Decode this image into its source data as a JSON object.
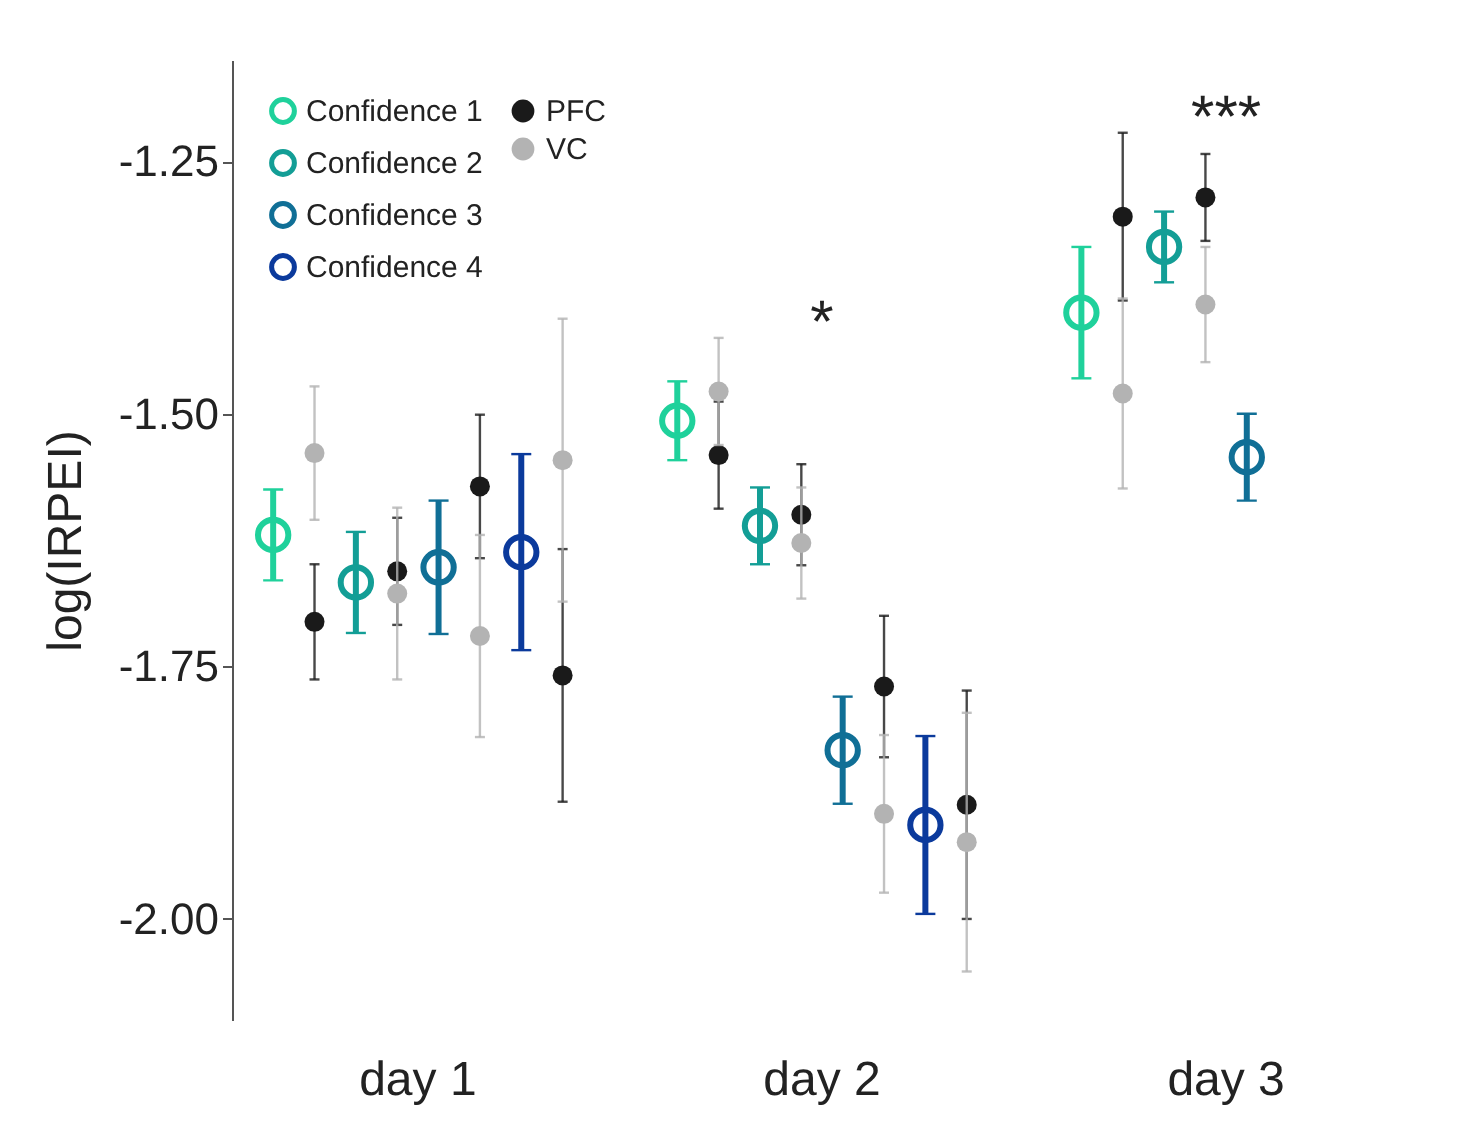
{
  "chart_data": {
    "type": "scatter",
    "ylabel": "log(IRPEI)",
    "categories": [
      "day 1",
      "day 2",
      "day 3"
    ],
    "ylim": [
      -2.1,
      -1.15
    ],
    "yticks": [
      {
        "value": -2,
        "label": "-2.00"
      },
      -1.75,
      {
        "value": -1.5,
        "label": "-1.50"
      },
      -1.25
    ],
    "grid": false,
    "legend": "top left",
    "marker": "circle",
    "annotations": [
      "*",
      "***"
    ],
    "series": [
      {
        "name": "Confidence 1",
        "color": "#1fd19b",
        "x": [
          "day 1",
          "day 2",
          "day 3"
        ],
        "values": [
          -1.62,
          -1.507,
          -1.4
        ],
        "errors": [
          0.045,
          0.039,
          0.065
        ]
      },
      {
        "name": "Confidence 2",
        "color": "#139e96",
        "x": [
          "day 1",
          "day 2",
          "day 3"
        ],
        "values": [
          -1.667,
          -1.611,
          -1.335
        ],
        "errors": [
          0.05,
          0.038,
          0.035
        ]
      },
      {
        "name": "Confidence 3",
        "color": "#106f96",
        "x": [
          "day 1",
          "day 2",
          "day 3"
        ],
        "values": [
          -1.652,
          -1.833,
          -1.543
        ],
        "errors": [
          0.066,
          0.053,
          0.043
        ]
      },
      {
        "name": "Confidence 4",
        "color": "#0b3a9c",
        "x": [
          "day 1",
          "day 2"
        ],
        "values": [
          -1.637,
          -1.907
        ],
        "errors": [
          0.097,
          0.088
        ]
      },
      {
        "name": "PFC",
        "color": "#1a1a1a",
        "x": [
          "day 1",
          "day 1",
          "day 1",
          "day 1",
          "day 2",
          "day 2",
          "day 2",
          "day 2",
          "day 3",
          "day 3"
        ],
        "values": [
          -1.706,
          -1.656,
          -1.572,
          -1.759,
          -1.541,
          -1.6,
          -1.77,
          -1.887,
          -1.305,
          -1.286
        ],
        "errors": [
          0.057,
          0.053,
          0.071,
          0.125,
          0.053,
          0.05,
          0.07,
          0.113,
          0.083,
          0.043
        ]
      },
      {
        "name": "VC",
        "color": "#b3b3b3",
        "x": [
          "day 1",
          "day 1",
          "day 1",
          "day 1",
          "day 2",
          "day 2",
          "day 2",
          "day 2",
          "day 3",
          "day 3"
        ],
        "values": [
          -1.539,
          -1.678,
          -1.72,
          -1.546,
          -1.478,
          -1.628,
          -1.896,
          -1.924,
          -1.48,
          -1.392
        ],
        "errors": [
          0.066,
          0.085,
          0.1,
          0.14,
          0.053,
          0.055,
          0.078,
          0.128,
          0.094,
          0.057
        ]
      }
    ]
  }
}
